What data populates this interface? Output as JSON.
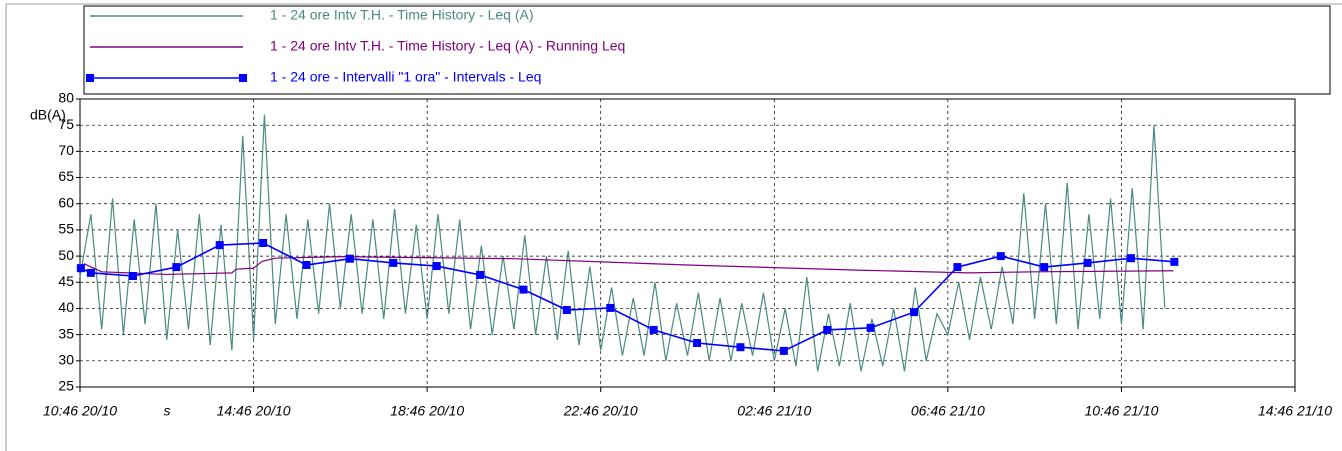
{
  "chart_data": {
    "type": "line",
    "ylabel": "dB(A)",
    "xlabel": "s",
    "xlim": [
      0,
      28
    ],
    "ylim": [
      25,
      80
    ],
    "xticks": [
      {
        "value": 0,
        "label": "10:46 20/10"
      },
      {
        "value": 4,
        "label": "14:46 20/10"
      },
      {
        "value": 8,
        "label": "18:46 20/10"
      },
      {
        "value": 12,
        "label": "22:46 20/10"
      },
      {
        "value": 16,
        "label": "02:46 21/10"
      },
      {
        "value": 20,
        "label": "06:46 21/10"
      },
      {
        "value": 24,
        "label": "10:46 21/10"
      },
      {
        "value": 28,
        "label": "14:46 21/10"
      }
    ],
    "yticks": [
      25,
      30,
      35,
      40,
      45,
      50,
      55,
      60,
      65,
      70,
      75,
      80
    ],
    "grid": true,
    "series": [
      {
        "name": "1 - 24 ore Intv T.H. - Time History - Leq (A)",
        "color": "#4a8a82",
        "x": [
          0,
          0.25,
          0.5,
          0.75,
          1,
          1.25,
          1.5,
          1.75,
          2,
          2.25,
          2.5,
          2.75,
          3,
          3.25,
          3.5,
          3.75,
          4,
          4.25,
          4.5,
          4.75,
          5,
          5.25,
          5.5,
          5.75,
          6,
          6.25,
          6.5,
          6.75,
          7,
          7.25,
          7.5,
          7.75,
          8,
          8.25,
          8.5,
          8.75,
          9,
          9.25,
          9.5,
          9.75,
          10,
          10.25,
          10.5,
          10.75,
          11,
          11.25,
          11.5,
          11.75,
          12,
          12.25,
          12.5,
          12.75,
          13,
          13.25,
          13.5,
          13.75,
          14,
          14.25,
          14.5,
          14.75,
          15,
          15.25,
          15.5,
          15.75,
          16,
          16.25,
          16.5,
          16.75,
          17,
          17.25,
          17.5,
          17.75,
          18,
          18.25,
          18.5,
          18.75,
          19,
          19.25,
          19.5,
          19.75,
          20,
          20.25,
          20.5,
          20.75,
          21,
          21.25,
          21.5,
          21.75,
          22,
          22.25,
          22.5,
          22.75,
          23,
          23.25,
          23.5,
          23.75,
          24,
          24.25,
          24.5,
          24.75,
          25
        ],
        "values": [
          46,
          58,
          36,
          61,
          35,
          57,
          37,
          60,
          34,
          55,
          36,
          58,
          33,
          56,
          32,
          73,
          34,
          77,
          37,
          58,
          38,
          57,
          39,
          60,
          40,
          58,
          39,
          57,
          38,
          59,
          39,
          56,
          38,
          58,
          39,
          57,
          36,
          52,
          35,
          50,
          36,
          54,
          35,
          50,
          34,
          51,
          33,
          48,
          32,
          44,
          31,
          42,
          31,
          45,
          30,
          41,
          31,
          43,
          30,
          42,
          30,
          41,
          31,
          43,
          30,
          40,
          29,
          46,
          28,
          39,
          29,
          41,
          28,
          38,
          29,
          40,
          28,
          44,
          30,
          39,
          35,
          45,
          34,
          46,
          36,
          48,
          37,
          62,
          38,
          60,
          37,
          64,
          36,
          58,
          38,
          61,
          37,
          63,
          36,
          75,
          40
        ]
      },
      {
        "name": "1 - 24 ore Intv T.H. - Time History - Leq (A) - Running Leq",
        "color": "#800080",
        "x": [
          0,
          0.1,
          0.5,
          2,
          3.5,
          3.6,
          4,
          4.2,
          4.5,
          6,
          10,
          14,
          18,
          20.5,
          22,
          25.2
        ],
        "values": [
          47,
          48.5,
          47,
          46.5,
          46.8,
          47.5,
          47.7,
          49,
          49.6,
          49.9,
          49.5,
          48.3,
          47.3,
          46.8,
          47,
          47.2
        ]
      },
      {
        "name": "1 - 24 ore - Intervalli \"1 ora\" - Intervals - Leq",
        "color": "#0000ff",
        "marker": "square",
        "x": [
          0.02,
          0.25,
          1.22,
          2.22,
          3.22,
          4.22,
          5.22,
          6.22,
          7.22,
          8.22,
          9.22,
          10.22,
          11.22,
          12.22,
          13.22,
          14.22,
          15.22,
          16.22,
          17.22,
          18.22,
          19.22,
          20.22,
          21.22,
          22.22,
          23.22,
          24.22,
          25.22
        ],
        "values": [
          47.7,
          46.8,
          46.2,
          47.9,
          52.1,
          52.5,
          48.3,
          49.5,
          48.7,
          48.1,
          46.4,
          43.6,
          39.7,
          40.1,
          35.9,
          33.4,
          32.6,
          31.9,
          35.9,
          36.3,
          39.3,
          47.9,
          50.0,
          47.9,
          48.7,
          49.6,
          48.9
        ]
      }
    ]
  }
}
